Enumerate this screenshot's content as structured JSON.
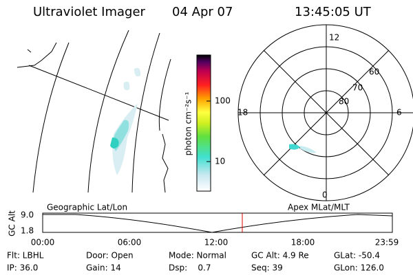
{
  "header": {
    "title": "Ultraviolet Imager",
    "date": "04 Apr 07",
    "time": "13:45:05 UT"
  },
  "colorbar": {
    "label": "photon cm⁻²s⁻¹",
    "ticks": [
      "100",
      "10"
    ]
  },
  "polar": {
    "mlt_labels": [
      "12",
      "18",
      "6",
      "0"
    ],
    "mlat_labels": [
      "60",
      "70",
      "80"
    ]
  },
  "timeline": {
    "left_label": "Geographic Lat/Lon",
    "right_label": "Apex MLat/MLT",
    "axis_label": "GC Alt",
    "y_labels": [
      "9.0",
      "1.8"
    ],
    "x_labels": [
      "00:00",
      "06:00",
      "12:00",
      "18:00",
      "23:59"
    ]
  },
  "footer": {
    "rows": [
      [
        "Flt: LBHL",
        "Door: Open",
        "Mode: Normal",
        "GC Alt: 4.9 Re",
        "GLat: -50.4"
      ],
      [
        "IP: 36.0",
        "Gain: 14",
        "Dsp:    0.7",
        "Seq: 39",
        "GLon: 126.0"
      ]
    ]
  }
}
